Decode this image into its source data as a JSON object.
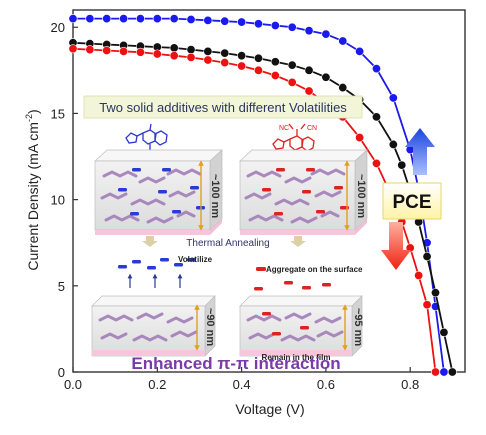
{
  "chart_data": {
    "type": "line",
    "xlabel": "Voltage (V)",
    "ylabel_main": "Current Density (mA cm",
    "ylabel_sup": "-2",
    "ylabel_tail": ")",
    "xlim": [
      0,
      0.93
    ],
    "ylim": [
      0,
      21
    ],
    "xticks": [
      0.0,
      0.2,
      0.4,
      0.6,
      0.8
    ],
    "xtick_labels": [
      "0.0",
      "0.2",
      "0.4",
      "0.6",
      "0.8"
    ],
    "yticks": [
      0,
      5,
      10,
      15,
      20
    ],
    "ytick_labels": [
      "0",
      "5",
      "10",
      "15",
      "20"
    ],
    "series": [
      {
        "color": "#1a1aee",
        "x": [
          0.0,
          0.04,
          0.08,
          0.12,
          0.16,
          0.2,
          0.24,
          0.28,
          0.32,
          0.36,
          0.4,
          0.44,
          0.48,
          0.52,
          0.56,
          0.6,
          0.64,
          0.68,
          0.72,
          0.76,
          0.8,
          0.82,
          0.84,
          0.86,
          0.88
        ],
        "y": [
          20.5,
          20.5,
          20.5,
          20.5,
          20.5,
          20.5,
          20.5,
          20.45,
          20.4,
          20.35,
          20.3,
          20.2,
          20.1,
          20.0,
          19.8,
          19.6,
          19.2,
          18.6,
          17.6,
          15.9,
          12.9,
          10.6,
          7.5,
          3.8,
          0.0
        ]
      },
      {
        "color": "#111111",
        "x": [
          0.0,
          0.04,
          0.08,
          0.12,
          0.16,
          0.2,
          0.24,
          0.28,
          0.32,
          0.36,
          0.4,
          0.44,
          0.48,
          0.52,
          0.56,
          0.6,
          0.64,
          0.68,
          0.72,
          0.76,
          0.78,
          0.8,
          0.82,
          0.84,
          0.86,
          0.88,
          0.9
        ],
        "y": [
          19.1,
          19.05,
          19.0,
          18.95,
          18.9,
          18.85,
          18.8,
          18.7,
          18.6,
          18.5,
          18.35,
          18.2,
          18.0,
          17.8,
          17.5,
          17.1,
          16.5,
          15.8,
          14.8,
          13.2,
          12.0,
          10.5,
          8.7,
          6.7,
          4.6,
          2.3,
          0.0
        ]
      },
      {
        "color": "#ee1111",
        "x": [
          0.0,
          0.04,
          0.08,
          0.12,
          0.16,
          0.2,
          0.24,
          0.28,
          0.32,
          0.36,
          0.4,
          0.44,
          0.48,
          0.52,
          0.56,
          0.6,
          0.64,
          0.68,
          0.72,
          0.76,
          0.78,
          0.8,
          0.82,
          0.84,
          0.86
        ],
        "y": [
          18.75,
          18.7,
          18.65,
          18.6,
          18.55,
          18.45,
          18.35,
          18.25,
          18.1,
          17.95,
          17.75,
          17.5,
          17.2,
          16.8,
          16.3,
          15.6,
          14.8,
          13.6,
          12.1,
          10.0,
          8.7,
          7.2,
          5.6,
          3.9,
          0.0
        ]
      }
    ]
  },
  "inset": {
    "banner": "Two solid additives with different Volatilities",
    "thickness_top_left": "~100 nm",
    "thickness_top_right": "~100 nm",
    "thickness_bottom_left": "~90 nm",
    "thickness_bottom_right": "~95 nm",
    "thermal_annealing": "Thermal Annealing",
    "volatilize": "Volatilize",
    "aggregate": "Aggregate on the surface",
    "remain": "Remain in the film",
    "enhanced": "Enhanced π-π interaction",
    "pce": "PCE"
  }
}
